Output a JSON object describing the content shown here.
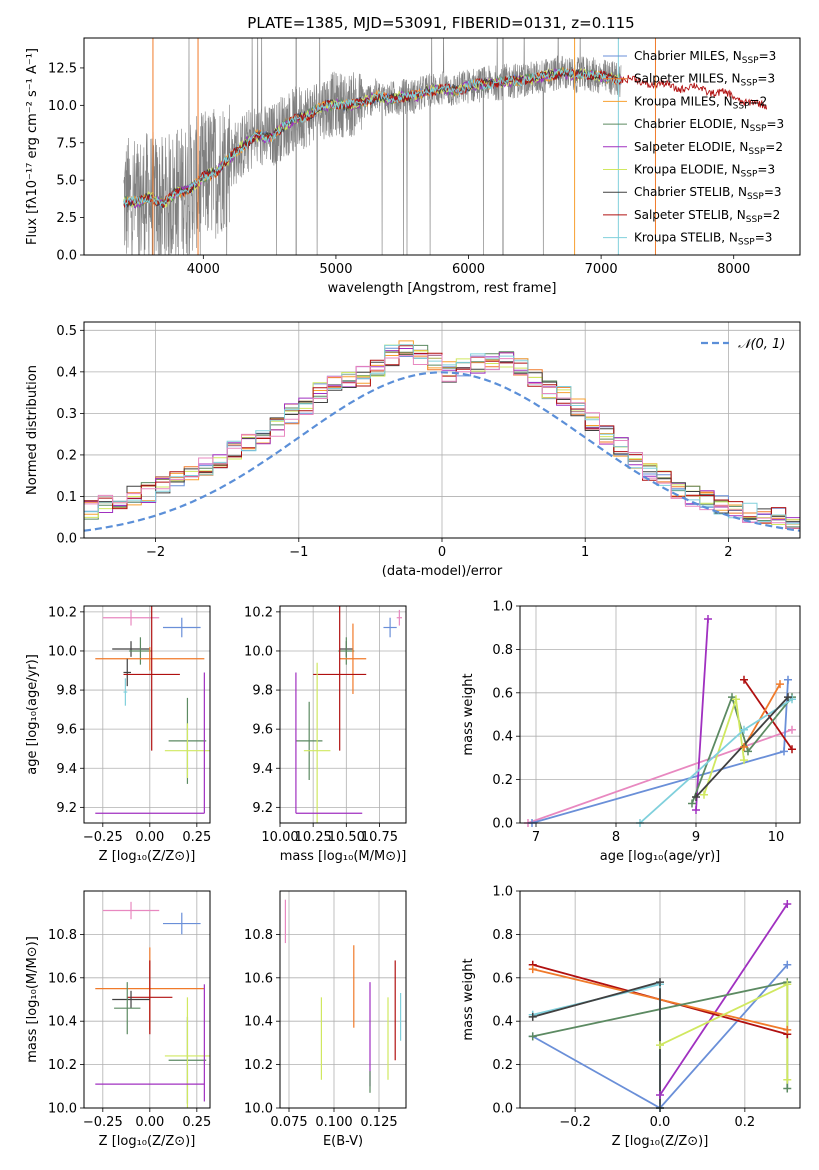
{
  "colors": {
    "chab_miles": "#6a8fd8",
    "salp_miles": "#f07a2a",
    "krou_miles": "#f7a030",
    "chab_elodie": "#5c8a62",
    "salp_elodie": "#a030c0",
    "krou_elodie": "#d0e860",
    "chab_stelib": "#404040",
    "salp_stelib": "#b01010",
    "krou_stelib": "#80d0dc",
    "pink": "#e888c0",
    "gray": "#808080",
    "normal": "#5b8fd8"
  },
  "chart_data": [
    {
      "id": "spectrum",
      "type": "line",
      "title": "PLATE=1385, MJD=53091, FIBERID=0131, z=0.115",
      "xlabel": "wavelength [Angstrom, rest frame]",
      "ylabel": "Flux [fλ10⁻¹⁷ erg cm⁻² s⁻¹ A⁻¹]",
      "xlim": [
        3100,
        8500
      ],
      "ylim": [
        0,
        14.5
      ],
      "xticks": [
        4000,
        5000,
        6000,
        7000,
        8000
      ],
      "yticks": [
        0.0,
        2.5,
        5.0,
        7.5,
        10.0,
        12.5
      ],
      "legend_position": "top-right",
      "series_labels": [
        "Chabrier MILES, N_SSP=3",
        "Salpeter MILES, N_SSP=3",
        "Kroupa MILES, N_SSP=2",
        "Chabrier ELODIE, N_SSP=3",
        "Salpeter ELODIE, N_SSP=2",
        "Kroupa ELODIE, N_SSP=3",
        "Chabrier STELIB, N_SSP=3",
        "Salpeter STELIB, N_SSP=2",
        "Kroupa STELIB, N_SSP=3"
      ],
      "model_continuum": {
        "x": [
          3400,
          3500,
          3600,
          3700,
          3800,
          3900,
          4000,
          4100,
          4200,
          4300,
          4400,
          4500,
          4600,
          4700,
          4800,
          4900,
          5000,
          5100,
          5200,
          5300,
          5400,
          5500,
          5600,
          5700,
          5800,
          5900,
          6000,
          6100,
          6200,
          6300,
          6400,
          6500,
          6600,
          6700,
          6800,
          6900,
          7000,
          7100,
          7200,
          7300,
          7400,
          7500,
          7600,
          7700,
          7800,
          7900,
          8000,
          8100,
          8200
        ],
        "y": [
          3.6,
          3.5,
          3.9,
          3.4,
          4.2,
          4.4,
          5.2,
          5.6,
          6.5,
          7.3,
          8.0,
          7.8,
          8.6,
          9.1,
          9.4,
          9.9,
          10.1,
          10.0,
          10.2,
          10.6,
          10.4,
          10.6,
          10.6,
          11.0,
          11.1,
          11.0,
          11.3,
          11.4,
          11.5,
          11.6,
          11.7,
          11.8,
          12.0,
          12.2,
          12.0,
          12.1,
          11.9,
          11.8,
          11.7,
          11.6,
          11.4,
          11.3,
          11.2,
          11.2,
          11.0,
          10.8,
          10.6,
          10.2,
          10.0
        ]
      }
    },
    {
      "id": "residuals",
      "type": "area",
      "xlabel": "(data-model)/error",
      "ylabel": "Normed distribution",
      "xlim": [
        -2.5,
        2.5
      ],
      "ylim": [
        0,
        0.52
      ],
      "xticks": [
        -2,
        -1,
        0,
        1,
        2
      ],
      "yticks": [
        0.0,
        0.1,
        0.2,
        0.3,
        0.4,
        0.5
      ],
      "legend_position": "top-right",
      "legend_label": "𝒩(0, 1)",
      "bin_width": 0.1,
      "histogram": [
        0.03,
        0.03,
        0.04,
        0.05,
        0.06,
        0.06,
        0.07,
        0.08,
        0.09,
        0.1,
        0.11,
        0.13,
        0.14,
        0.15,
        0.17,
        0.19,
        0.21,
        0.23,
        0.25,
        0.27,
        0.3,
        0.32,
        0.35,
        0.37,
        0.38,
        0.39,
        0.41,
        0.44,
        0.46,
        0.44,
        0.42,
        0.4,
        0.41,
        0.42,
        0.43,
        0.43,
        0.41,
        0.39,
        0.36,
        0.34,
        0.31,
        0.28,
        0.25,
        0.22,
        0.19,
        0.16,
        0.14,
        0.12,
        0.1,
        0.09,
        0.08,
        0.07,
        0.06,
        0.05,
        0.05,
        0.04,
        0.04,
        0.03,
        0.03,
        0.03,
        0.02,
        0.02
      ]
    },
    {
      "id": "age_vs_Z",
      "type": "scatter",
      "xlabel": "Z [log₁₀(Z/Z⊙)]",
      "ylabel": "age  [log₁₀(age/yr)]",
      "xlim": [
        -0.35,
        0.32
      ],
      "ylim": [
        9.12,
        10.23
      ],
      "xticks": [
        -0.25,
        0.0,
        0.25
      ],
      "yticks": [
        9.2,
        9.4,
        9.6,
        9.8,
        10.0,
        10.2
      ],
      "points": [
        {
          "color": "pink",
          "x": -0.1,
          "xerr": 0.15,
          "y": 10.17,
          "yerr": 0.04
        },
        {
          "color": "chab_miles",
          "x": 0.17,
          "xerr": 0.1,
          "y": 10.12,
          "yerr": 0.05
        },
        {
          "color": "chab_stelib",
          "x": -0.1,
          "xerr": 0.1,
          "y": 10.01,
          "yerr": 0.04
        },
        {
          "color": "chab_elodie",
          "x": -0.05,
          "xerr": 0.06,
          "y": 10.0,
          "yerr": 0.07
        },
        {
          "color": "salp_miles",
          "x": 0.0,
          "xerr": 0.29,
          "y": 9.96,
          "yerr": 0.06
        },
        {
          "color": "krou_stelib",
          "x": -0.13,
          "xerr": 0.01,
          "y": 9.79,
          "yerr": 0.07
        },
        {
          "color": "chab_stelib",
          "x": -0.12,
          "xerr": 0.02,
          "y": 9.89,
          "yerr": 0.07
        },
        {
          "color": "salp_stelib",
          "x": 0.01,
          "xerr": 0.15,
          "y": 9.88,
          "yerr": 0.39
        },
        {
          "color": "chab_elodie",
          "x": 0.2,
          "xerr": 0.1,
          "y": 9.54,
          "yerr": 0.22
        },
        {
          "color": "krou_elodie",
          "x": 0.2,
          "xerr": 0.12,
          "y": 9.49,
          "yerr": 0.14
        },
        {
          "color": "salp_elodie",
          "x": 0.0,
          "xerr": 0.29,
          "y": 9.17,
          "yerr": 0.0
        },
        {
          "color": "salp_elodie",
          "x": 0.29,
          "xerr": 0.0,
          "y": 9.53,
          "yerr": 0.36
        }
      ]
    },
    {
      "id": "age_vs_mass",
      "type": "scatter",
      "xlabel": "mass [log₁₀(M/M⊙)]",
      "xlim": [
        10.0,
        10.95
      ],
      "ylim": [
        9.12,
        10.23
      ],
      "xticks": [
        10.0,
        10.25,
        10.5,
        10.75
      ],
      "yticks": [
        9.2,
        9.4,
        9.6,
        9.8,
        10.0,
        10.2
      ],
      "points": [
        {
          "color": "pink",
          "x": 10.9,
          "xerr": 0.02,
          "y": 10.17,
          "yerr": 0.04
        },
        {
          "color": "chab_miles",
          "x": 10.83,
          "xerr": 0.05,
          "y": 10.12,
          "yerr": 0.05
        },
        {
          "color": "chab_stelib",
          "x": 10.5,
          "xerr": 0.05,
          "y": 10.01,
          "yerr": 0.04
        },
        {
          "color": "chab_elodie",
          "x": 10.5,
          "xerr": 0.06,
          "y": 10.0,
          "yerr": 0.07
        },
        {
          "color": "salp_miles",
          "x": 10.55,
          "xerr": 0.1,
          "y": 9.96,
          "yerr": 0.18
        },
        {
          "color": "salp_stelib",
          "x": 10.45,
          "xerr": 0.2,
          "y": 9.88,
          "yerr": 0.39
        },
        {
          "color": "chab_elodie",
          "x": 10.22,
          "xerr": 0.1,
          "y": 9.54,
          "yerr": 0.2
        },
        {
          "color": "krou_elodie",
          "x": 10.28,
          "xerr": 0.1,
          "y": 9.49,
          "yerr": 0.45
        },
        {
          "color": "salp_elodie",
          "x": 10.12,
          "xerr": 0.0,
          "y": 9.53,
          "yerr": 0.36
        },
        {
          "color": "salp_elodie",
          "x": 10.37,
          "xerr": 0.25,
          "y": 9.17,
          "yerr": 0.0
        }
      ]
    },
    {
      "id": "weight_vs_age",
      "type": "line",
      "xlabel": "age  [log₁₀(age/yr)]",
      "ylabel": "mass weight",
      "xlim": [
        6.8,
        10.3
      ],
      "ylim": [
        0,
        1
      ],
      "xticks": [
        7,
        8,
        9,
        10
      ],
      "yticks": [
        0.0,
        0.2,
        0.4,
        0.6,
        0.8,
        1.0
      ],
      "series": [
        {
          "color": "pink",
          "x": [
            6.9,
            10.2
          ],
          "y": [
            0.0,
            0.43
          ]
        },
        {
          "color": "chab_miles",
          "x": [
            6.95,
            10.1,
            10.15
          ],
          "y": [
            0.0,
            0.33,
            0.66
          ]
        },
        {
          "color": "salp_elodie",
          "x": [
            9.0,
            9.15
          ],
          "y": [
            0.06,
            0.94
          ]
        },
        {
          "color": "salp_stelib",
          "x": [
            9.6,
            10.2
          ],
          "y": [
            0.66,
            0.34
          ]
        },
        {
          "color": "salp_miles",
          "x": [
            9.6,
            10.05
          ],
          "y": [
            0.35,
            0.64
          ]
        },
        {
          "color": "chab_elodie",
          "x": [
            8.95,
            9.45,
            9.65,
            10.2
          ],
          "y": [
            0.09,
            0.58,
            0.33,
            0.58
          ]
        },
        {
          "color": "krou_elodie",
          "x": [
            9.1,
            9.5,
            9.6
          ],
          "y": [
            0.13,
            0.57,
            0.29
          ]
        },
        {
          "color": "krou_stelib",
          "x": [
            8.3,
            9.6,
            10.2
          ],
          "y": [
            0.0,
            0.43,
            0.57
          ]
        },
        {
          "color": "chab_stelib",
          "x": [
            9.0,
            10.15
          ],
          "y": [
            0.12,
            0.58
          ]
        }
      ]
    },
    {
      "id": "mass_vs_Z",
      "type": "scatter",
      "xlabel": "Z [log₁₀(Z/Z⊙)]",
      "ylabel": "mass [log₁₀(M/M⊙)]",
      "xlim": [
        -0.35,
        0.32
      ],
      "ylim": [
        10.0,
        11.0
      ],
      "xticks": [
        -0.25,
        0.0,
        0.25
      ],
      "yticks": [
        10.0,
        10.2,
        10.4,
        10.6,
        10.8
      ],
      "points": [
        {
          "color": "pink",
          "x": -0.1,
          "xerr": 0.15,
          "y": 10.91,
          "yerr": 0.04
        },
        {
          "color": "chab_miles",
          "x": 0.17,
          "xerr": 0.1,
          "y": 10.85,
          "yerr": 0.05
        },
        {
          "color": "salp_miles",
          "x": 0.0,
          "xerr": 0.29,
          "y": 10.55,
          "yerr": 0.19
        },
        {
          "color": "salp_stelib",
          "x": 0.0,
          "xerr": 0.12,
          "y": 10.51,
          "yerr": 0.17
        },
        {
          "color": "chab_stelib",
          "x": -0.1,
          "xerr": 0.1,
          "y": 10.5,
          "yerr": 0.04
        },
        {
          "color": "chab_elodie",
          "x": -0.12,
          "xerr": 0.07,
          "y": 10.46,
          "yerr": 0.12
        },
        {
          "color": "chab_elodie",
          "x": 0.2,
          "xerr": 0.1,
          "y": 10.22,
          "yerr": 0.2
        },
        {
          "color": "krou_elodie",
          "x": 0.2,
          "xerr": 0.12,
          "y": 10.24,
          "yerr": 0.27
        },
        {
          "color": "salp_elodie",
          "x": 0.0,
          "xerr": 0.29,
          "y": 10.11,
          "yerr": 0.0
        },
        {
          "color": "salp_elodie",
          "x": 0.29,
          "xerr": 0.0,
          "y": 10.3,
          "yerr": 0.27
        }
      ]
    },
    {
      "id": "mass_vs_EBV",
      "type": "scatter",
      "xlabel": "E(B-V)",
      "xlim": [
        0.07,
        0.14
      ],
      "ylim": [
        10.0,
        11.0
      ],
      "xticks": [
        0.075,
        0.1,
        0.125
      ],
      "yticks": [
        10.0,
        10.2,
        10.4,
        10.6,
        10.8
      ],
      "points": [
        {
          "color": "pink",
          "x": 0.073,
          "xerr": 0.0,
          "y": 10.86,
          "yerr": 0.1
        },
        {
          "color": "krou_elodie",
          "x": 0.093,
          "xerr": 0.0,
          "y": 10.32,
          "yerr": 0.19
        },
        {
          "color": "salp_miles",
          "x": 0.111,
          "xerr": 0.0,
          "y": 10.56,
          "yerr": 0.19
        },
        {
          "color": "salp_elodie",
          "x": 0.12,
          "xerr": 0.0,
          "y": 10.34,
          "yerr": 0.24
        },
        {
          "color": "chab_elodie",
          "x": 0.12,
          "xerr": 0.0,
          "y": 10.12,
          "yerr": 0.05
        },
        {
          "color": "krou_elodie",
          "x": 0.13,
          "xerr": 0.0,
          "y": 10.32,
          "yerr": 0.19
        },
        {
          "color": "salp_stelib",
          "x": 0.134,
          "xerr": 0.0,
          "y": 10.45,
          "yerr": 0.23
        },
        {
          "color": "krou_stelib",
          "x": 0.137,
          "xerr": 0.0,
          "y": 10.42,
          "yerr": 0.11
        }
      ]
    },
    {
      "id": "weight_vs_Z",
      "type": "line",
      "xlabel": "Z [log₁₀(Z/Z⊙)]",
      "ylabel": "mass weight",
      "xlim": [
        -0.33,
        0.33
      ],
      "ylim": [
        0,
        1
      ],
      "xticks": [
        -0.2,
        0.0,
        0.2
      ],
      "yticks": [
        0.0,
        0.2,
        0.4,
        0.6,
        0.8,
        1.0
      ],
      "series": [
        {
          "color": "chab_miles",
          "x": [
            -0.3,
            0.0,
            0.3
          ],
          "y": [
            0.33,
            0.0,
            0.66
          ]
        },
        {
          "color": "salp_elodie",
          "x": [
            0.0,
            0.3
          ],
          "y": [
            0.06,
            0.94
          ]
        },
        {
          "color": "salp_stelib",
          "x": [
            -0.3,
            0.3
          ],
          "y": [
            0.66,
            0.34
          ]
        },
        {
          "color": "salp_miles",
          "x": [
            -0.3,
            0.3
          ],
          "y": [
            0.64,
            0.36
          ]
        },
        {
          "color": "chab_elodie",
          "x": [
            -0.3,
            0.3,
            0.3
          ],
          "y": [
            0.33,
            0.58,
            0.09
          ]
        },
        {
          "color": "krou_elodie",
          "x": [
            0.0,
            0.3,
            0.3
          ],
          "y": [
            0.29,
            0.57,
            0.13
          ]
        },
        {
          "color": "krou_stelib",
          "x": [
            -0.3,
            0.0,
            0.0
          ],
          "y": [
            0.43,
            0.57,
            0.0
          ]
        },
        {
          "color": "chab_stelib",
          "x": [
            -0.3,
            0.0,
            0.0
          ],
          "y": [
            0.42,
            0.58,
            0.0
          ]
        }
      ]
    }
  ]
}
